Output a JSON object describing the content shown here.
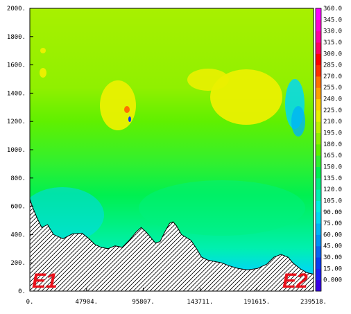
{
  "chart_data": {
    "type": "heatmap",
    "title": "",
    "xlabel": "",
    "ylabel": "",
    "xlim": [
      0,
      239518
    ],
    "ylim": [
      0,
      2000
    ],
    "x_tick_labels": [
      "0.",
      "47904.",
      "95807.",
      "143711.",
      "191615.",
      "239518."
    ],
    "x_tick_values": [
      0,
      47904,
      95807,
      143711,
      191615,
      239518
    ],
    "y_tick_labels": [
      "0.",
      "200.",
      "400.",
      "600.",
      "800.",
      "1000.",
      "1200.",
      "1400.",
      "1600.",
      "1800.",
      "2000."
    ],
    "y_tick_values": [
      0,
      200,
      400,
      600,
      800,
      1000,
      1200,
      1400,
      1600,
      1800,
      2000
    ],
    "colorbar": {
      "labels": [
        "0.000",
        "15.00",
        "30.00",
        "45.00",
        "60.00",
        "75.00",
        "90.00",
        "105.0",
        "120.0",
        "135.0",
        "150.0",
        "165.0",
        "180.0",
        "195.0",
        "210.0",
        "225.0",
        "240.0",
        "255.0",
        "270.0",
        "285.0",
        "300.0",
        "315.0",
        "330.0",
        "345.0",
        "360.0"
      ],
      "values": [
        0,
        15,
        30,
        45,
        60,
        75,
        90,
        105,
        120,
        135,
        150,
        165,
        180,
        195,
        210,
        225,
        240,
        255,
        270,
        285,
        300,
        315,
        330,
        345,
        360
      ],
      "colors": [
        "#3a00e6",
        "#1d1df5",
        "#0a3cf0",
        "#0a64f0",
        "#0090f5",
        "#00b4f5",
        "#00d8f2",
        "#00f0e0",
        "#00f0b0",
        "#00f080",
        "#00f050",
        "#30f030",
        "#60f000",
        "#90f000",
        "#c0f000",
        "#eaf000",
        "#ffd000",
        "#ffa000",
        "#ff7000",
        "#ff3000",
        "#ff0000",
        "#ff0060",
        "#ff00a0",
        "#ff00d0",
        "#ff00ff"
      ]
    },
    "terrain": [
      [
        0,
        650
      ],
      [
        3000,
        580
      ],
      [
        6000,
        520
      ],
      [
        10000,
        450
      ],
      [
        15000,
        470
      ],
      [
        20000,
        400
      ],
      [
        28000,
        370
      ],
      [
        36000,
        405
      ],
      [
        44000,
        410
      ],
      [
        50000,
        370
      ],
      [
        55000,
        330
      ],
      [
        60000,
        310
      ],
      [
        66000,
        300
      ],
      [
        72000,
        320
      ],
      [
        78000,
        310
      ],
      [
        84000,
        360
      ],
      [
        90000,
        420
      ],
      [
        94000,
        450
      ],
      [
        98000,
        420
      ],
      [
        102000,
        380
      ],
      [
        106000,
        340
      ],
      [
        110000,
        350
      ],
      [
        114000,
        420
      ],
      [
        118000,
        480
      ],
      [
        121000,
        490
      ],
      [
        124000,
        460
      ],
      [
        128000,
        400
      ],
      [
        132000,
        380
      ],
      [
        136000,
        360
      ],
      [
        140000,
        310
      ],
      [
        145000,
        240
      ],
      [
        150000,
        220
      ],
      [
        156000,
        210
      ],
      [
        162000,
        200
      ],
      [
        168000,
        180
      ],
      [
        176000,
        160
      ],
      [
        184000,
        150
      ],
      [
        192000,
        160
      ],
      [
        200000,
        190
      ],
      [
        206000,
        240
      ],
      [
        212000,
        260
      ],
      [
        218000,
        240
      ],
      [
        222000,
        200
      ],
      [
        228000,
        160
      ],
      [
        234000,
        130
      ],
      [
        239518,
        120
      ]
    ],
    "annotations": [
      "E1",
      "E2"
    ]
  }
}
